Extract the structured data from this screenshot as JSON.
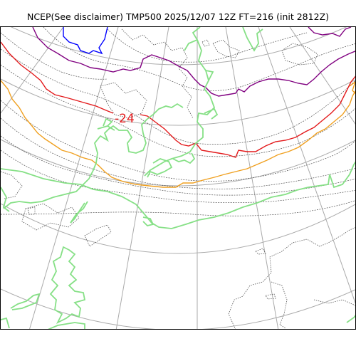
{
  "title": "NCEP(See disclaimer) TMP500 2025/12/07 12Z FT=216 (init 2812Z)",
  "map": {
    "field": "TMP500",
    "contour_labels": [
      {
        "text": "-24",
        "color": "#e02020"
      }
    ],
    "isotherm_colors": {
      "minus24": "#e31a1c",
      "yellow": "#f0a020",
      "green": "#86e086",
      "purple": "#800080",
      "blue": "#0000ff",
      "minor_contours": "#555555",
      "graticule": "#aaaaaa",
      "coastline": "#555555"
    }
  }
}
